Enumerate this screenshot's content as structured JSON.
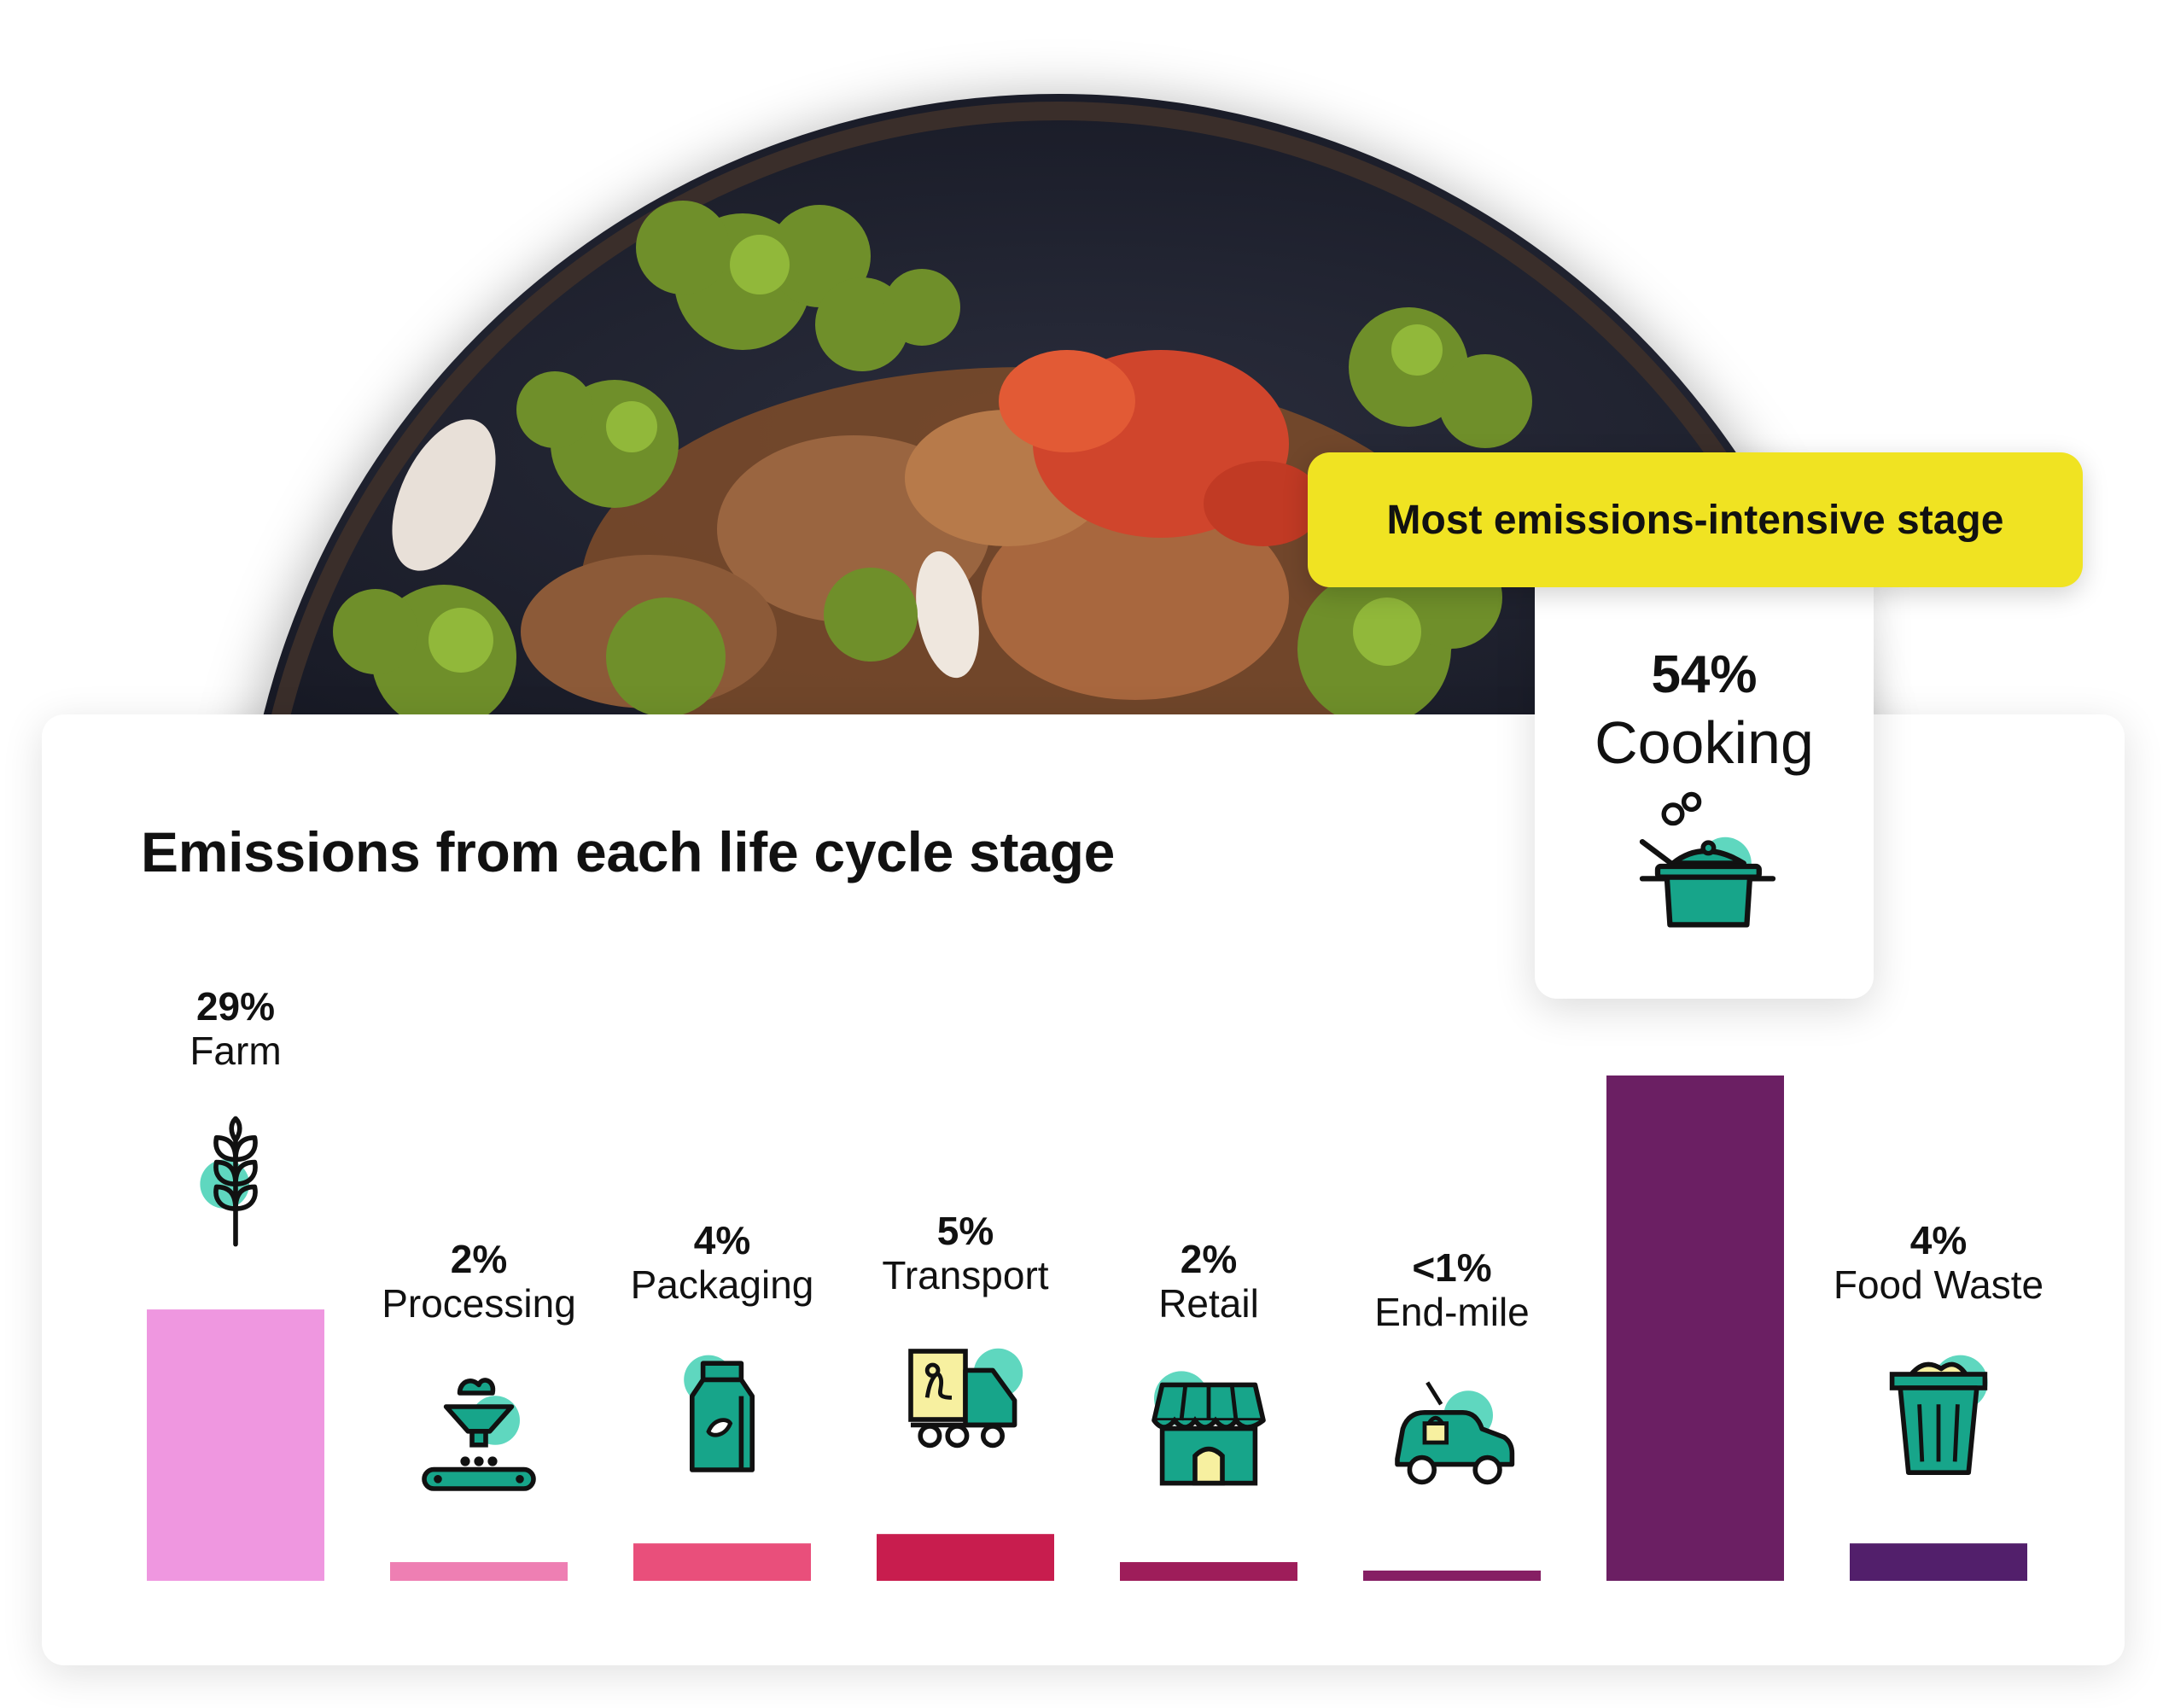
{
  "chart_data": {
    "type": "bar",
    "title": "Emissions from each life cycle stage",
    "categories": [
      "Farm",
      "Processing",
      "Packaging",
      "Transport",
      "Retail",
      "End-mile",
      "Cooking",
      "Food Waste"
    ],
    "values": [
      29,
      2,
      4,
      5,
      2,
      0.5,
      54,
      4
    ],
    "value_labels": [
      "29%",
      "2%",
      "4%",
      "5%",
      "2%",
      "<1%",
      "54%",
      "4%"
    ],
    "colors": [
      "#ef97e0",
      "#ee7fb3",
      "#e94f7b",
      "#c81d4e",
      "#9e1d5a",
      "#861f64",
      "#6b1f63",
      "#521f6b"
    ],
    "icons": [
      "wheat-icon",
      "processing-machine-icon",
      "milk-carton-icon",
      "delivery-truck-icon",
      "storefront-icon",
      "delivery-car-icon",
      "cooking-pot-icon",
      "trash-bin-icon"
    ],
    "ylim": [
      0,
      54
    ],
    "highlight": {
      "badge": "Most emissions-intensive stage",
      "label": "54%",
      "category": "Cooking"
    }
  },
  "colors": {
    "icon_accent": "#5fd7bf",
    "icon_fill": "#17a58a",
    "icon_stroke": "#111111",
    "badge": "#f0e322"
  }
}
